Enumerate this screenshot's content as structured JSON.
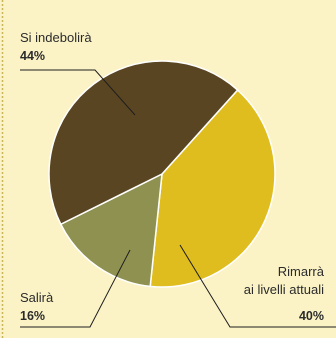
{
  "chart_data": {
    "type": "pie",
    "slices": [
      {
        "label": "Si indebolirà",
        "value": 44,
        "value_label": "44%",
        "color": "#5a4522"
      },
      {
        "label_lines": [
          "Rimarrà",
          "ai livelli attuali"
        ],
        "value": 40,
        "value_label": "40%",
        "color": "#dfbd1e"
      },
      {
        "label": "Salirà",
        "value": 16,
        "value_label": "16%",
        "color": "#8f9150"
      }
    ],
    "background_color": "#fbf3c6",
    "border_color": "#c9b65a",
    "legend": "none"
  }
}
